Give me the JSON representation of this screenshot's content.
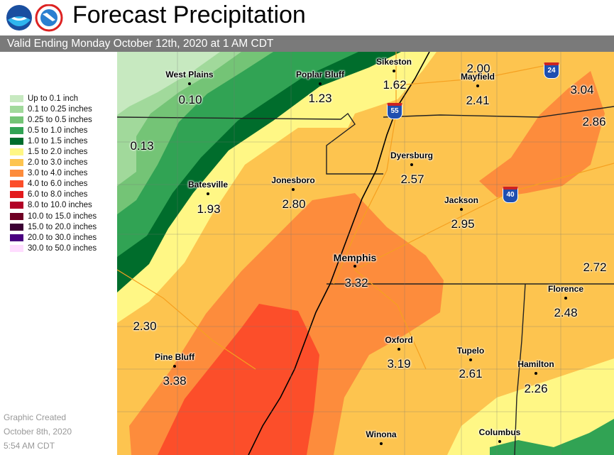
{
  "header": {
    "title": "Forecast Precipitation",
    "valid": "Valid Ending Monday October 12th, 2020 at 1 AM CDT",
    "logos": [
      "NOAA",
      "NATIONAL WEATHER SERVICE"
    ]
  },
  "legend": [
    {
      "label": "Up to 0.1 inch",
      "color": "#c7e9c0"
    },
    {
      "label": "0.1 to 0.25 inches",
      "color": "#a1d99b"
    },
    {
      "label": "0.25 to 0.5 inches",
      "color": "#74c476"
    },
    {
      "label": "0.5 to 1.0 inches",
      "color": "#31a354"
    },
    {
      "label": "1.0 to 1.5 inches",
      "color": "#006d2c"
    },
    {
      "label": "1.5 to 2.0 inches",
      "color": "#fff785"
    },
    {
      "label": "2.0 to 3.0 inches",
      "color": "#fdc44f"
    },
    {
      "label": "3.0 to 4.0 inches",
      "color": "#fd8c3c"
    },
    {
      "label": "4.0 to 6.0 inches",
      "color": "#fc4e2a"
    },
    {
      "label": "6.0 to 8.0 inches",
      "color": "#e31a1c"
    },
    {
      "label": "8.0 to 10.0 inches",
      "color": "#b10026"
    },
    {
      "label": "10.0 to 15.0 inches",
      "color": "#6e0024"
    },
    {
      "label": "15.0 to 20.0 inches",
      "color": "#3b0034"
    },
    {
      "label": "20.0 to 30.0 inches",
      "color": "#4a0080"
    },
    {
      "label": "30.0 to 50.0 inches",
      "color": "#ffdcff"
    }
  ],
  "created": {
    "line1": "Graphic Created",
    "line2": "October 8th, 2020",
    "line3": "5:54 AM CDT"
  },
  "cities": [
    {
      "name": "West Plains",
      "value": "0.10"
    },
    {
      "name": "Poplar Bluff",
      "value": "1.23"
    },
    {
      "name": "Sikeston",
      "value": "1.62"
    },
    {
      "name": "Mayfield",
      "value": "2.41"
    },
    {
      "name": "Dyersburg",
      "value": "2.57"
    },
    {
      "name": "Batesville",
      "value": "1.93"
    },
    {
      "name": "Jonesboro",
      "value": "2.80"
    },
    {
      "name": "Jackson",
      "value": "2.95"
    },
    {
      "name": "Memphis",
      "value": "3.32"
    },
    {
      "name": "Florence",
      "value": "2.48"
    },
    {
      "name": "Oxford",
      "value": "3.19"
    },
    {
      "name": "Pine Bluff",
      "value": "3.38"
    },
    {
      "name": "Tupelo",
      "value": "2.61"
    },
    {
      "name": "Hamilton",
      "value": "2.26"
    },
    {
      "name": "Winona",
      "value": ""
    },
    {
      "name": "Columbus",
      "value": ""
    }
  ],
  "points": [
    "0.13",
    "2.00",
    "3.04",
    "2.86",
    "2.72",
    "2.30"
  ],
  "highways": [
    "24",
    "55",
    "40"
  ]
}
